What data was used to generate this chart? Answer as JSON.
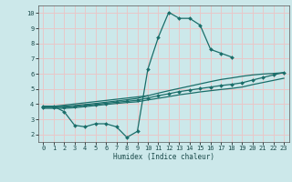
{
  "xlabel": "Humidex (Indice chaleur)",
  "bg_color": "#cce8ea",
  "grid_color": "#e8c8c8",
  "line_color": "#1a6e6a",
  "xlim": [
    -0.5,
    23.5
  ],
  "ylim": [
    1.5,
    10.5
  ],
  "xticks": [
    0,
    1,
    2,
    3,
    4,
    5,
    6,
    7,
    8,
    9,
    10,
    11,
    12,
    13,
    14,
    15,
    16,
    17,
    18,
    19,
    20,
    21,
    22,
    23
  ],
  "yticks": [
    2,
    3,
    4,
    5,
    6,
    7,
    8,
    9,
    10
  ],
  "lines": [
    {
      "x": [
        0,
        1,
        2,
        3,
        4,
        5,
        6,
        7,
        8,
        9,
        10,
        11,
        12,
        13,
        14,
        15,
        16,
        17,
        18
      ],
      "y": [
        3.85,
        3.85,
        3.5,
        2.6,
        2.5,
        2.7,
        2.7,
        2.5,
        1.8,
        2.2,
        6.3,
        8.4,
        10.05,
        9.65,
        9.65,
        9.2,
        7.6,
        7.35,
        7.1
      ],
      "marker": "D",
      "markersize": 2.0,
      "linewidth": 0.9
    },
    {
      "x": [
        0,
        1,
        10
      ],
      "y": [
        3.85,
        3.85,
        4.55
      ],
      "marker": null,
      "markersize": 0,
      "linewidth": 0.9
    },
    {
      "x": [
        0,
        1,
        2,
        3,
        4,
        5,
        6,
        7,
        8,
        9,
        10,
        11,
        12,
        13,
        14,
        15,
        16,
        17,
        18,
        19,
        20,
        21,
        22,
        23
      ],
      "y": [
        3.82,
        3.82,
        3.85,
        3.9,
        3.97,
        4.04,
        4.12,
        4.2,
        4.28,
        4.37,
        4.55,
        4.72,
        4.88,
        5.03,
        5.18,
        5.33,
        5.48,
        5.62,
        5.72,
        5.83,
        5.92,
        5.98,
        6.02,
        6.07
      ],
      "marker": null,
      "markersize": 0,
      "linewidth": 0.9
    },
    {
      "x": [
        0,
        1,
        2,
        3,
        4,
        5,
        6,
        7,
        8,
        9,
        10,
        11,
        12,
        13,
        14,
        15,
        16,
        17,
        18,
        19,
        20,
        21,
        22,
        23
      ],
      "y": [
        3.78,
        3.78,
        3.8,
        3.85,
        3.91,
        3.97,
        4.05,
        4.12,
        4.18,
        4.25,
        4.4,
        4.55,
        4.68,
        4.82,
        4.92,
        5.02,
        5.12,
        5.22,
        5.3,
        5.4,
        5.58,
        5.75,
        5.92,
        6.08
      ],
      "marker": "D",
      "markersize": 2.0,
      "linewidth": 0.9
    },
    {
      "x": [
        0,
        1,
        2,
        3,
        4,
        5,
        6,
        7,
        8,
        9,
        10,
        11,
        12,
        13,
        14,
        15,
        16,
        17,
        18,
        19,
        20,
        21,
        22,
        23
      ],
      "y": [
        3.72,
        3.72,
        3.72,
        3.76,
        3.83,
        3.9,
        3.97,
        4.04,
        4.1,
        4.15,
        4.27,
        4.38,
        4.49,
        4.61,
        4.7,
        4.8,
        4.88,
        4.96,
        5.03,
        5.12,
        5.28,
        5.42,
        5.56,
        5.7
      ],
      "marker": null,
      "markersize": 0,
      "linewidth": 0.9
    }
  ]
}
